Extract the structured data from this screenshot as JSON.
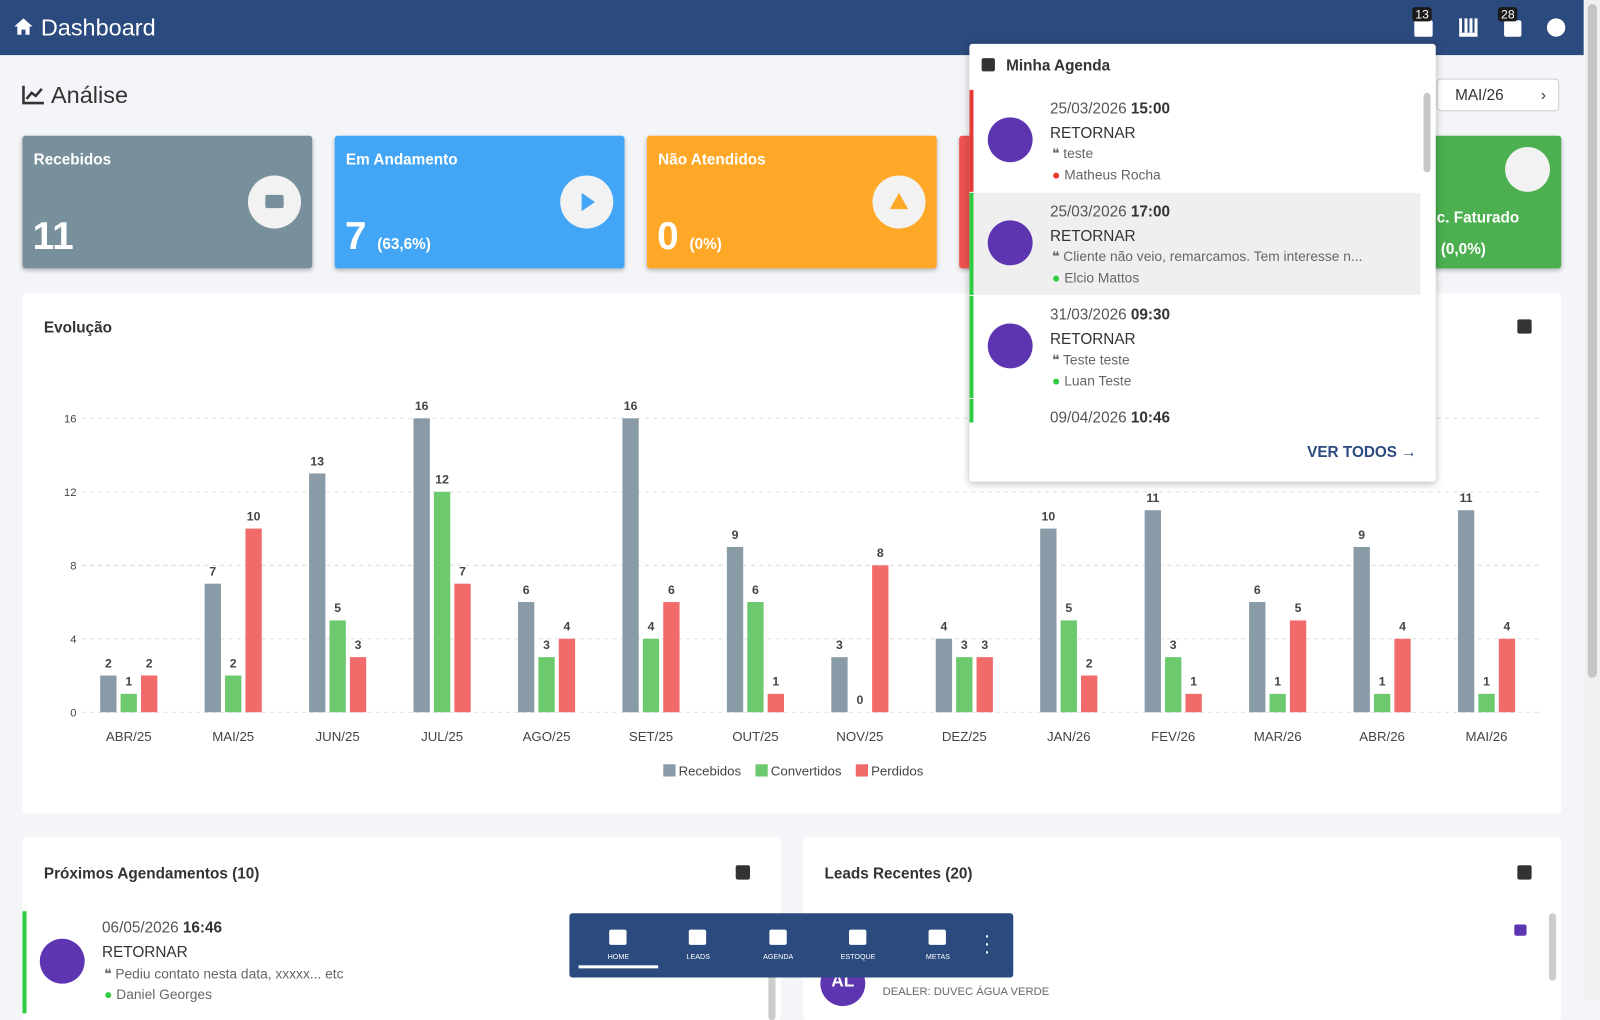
{
  "header": {
    "title": "Dashboard",
    "badges": [
      "13",
      "28"
    ]
  },
  "section_title": "Análise",
  "period": "MAI/26",
  "cards": [
    {
      "title": "Recebidos",
      "value": "11"
    },
    {
      "title": "Em Andamento",
      "value": "7",
      "pct": "(63,6%)"
    },
    {
      "title": "Não Atendidos",
      "value": "0",
      "pct": "(0%)"
    },
    {
      "title": "c. Faturado",
      "pct": "(0,0%)"
    }
  ],
  "chart_data": {
    "type": "bar",
    "title": "Evolução",
    "categories": [
      "ABR/25",
      "MAI/25",
      "JUN/25",
      "JUL/25",
      "AGO/25",
      "SET/25",
      "OUT/25",
      "NOV/25",
      "DEZ/25",
      "JAN/26",
      "FEV/26",
      "MAR/26",
      "ABR/26",
      "MAI/26"
    ],
    "series": [
      {
        "name": "Recebidos",
        "color": "#8a9ba8",
        "values": [
          2,
          7,
          13,
          16,
          6,
          16,
          9,
          3,
          4,
          10,
          11,
          6,
          9,
          11
        ]
      },
      {
        "name": "Convertidos",
        "color": "#6cc96e",
        "values": [
          1,
          2,
          5,
          12,
          3,
          4,
          6,
          0,
          3,
          5,
          3,
          1,
          1,
          1
        ]
      },
      {
        "name": "Perdidos",
        "color": "#f26b6b",
        "values": [
          2,
          10,
          3,
          7,
          4,
          6,
          1,
          8,
          3,
          2,
          1,
          5,
          4,
          4
        ]
      }
    ],
    "ylim": [
      0,
      16
    ],
    "yticks": [
      0,
      4,
      8,
      12,
      16
    ],
    "grid": true,
    "legend": "bottom"
  },
  "agenda": {
    "title": "Minha Agenda",
    "items": [
      {
        "date": "25/03/2026",
        "time": "15:00",
        "type": "RETORNAR",
        "note": "teste",
        "person": "Matheus Rocha",
        "color": "#e53935"
      },
      {
        "date": "25/03/2026",
        "time": "17:00",
        "type": "RETORNAR",
        "note": "Cliente não veio, remarcamos. Tem interesse n...",
        "person": "Elcio Mattos",
        "color": "#2ecc40"
      },
      {
        "date": "31/03/2026",
        "time": "09:30",
        "type": "RETORNAR",
        "note": "Teste teste",
        "person": "Luan Teste",
        "color": "#2ecc40"
      },
      {
        "date": "09/04/2026",
        "time": "10:46",
        "color": "#2ecc40"
      }
    ],
    "link": "VER TODOS"
  },
  "schedule": {
    "title": "Próximos Agendamentos (10)",
    "item": {
      "date": "06/05/2026",
      "time": "16:46",
      "type": "RETORNAR",
      "note": "Pediu contato nesta data, xxxxx... etc",
      "person": "Daniel Georges"
    }
  },
  "leads": {
    "title": "Leads Recentes (20)",
    "item": {
      "initials": "AL",
      "dealer": "DEALER: DUVEC ÁGUA VERDE"
    }
  },
  "nav": [
    "HOME",
    "LEADS",
    "AGENDA",
    "ESTOQUE",
    "METAS"
  ]
}
